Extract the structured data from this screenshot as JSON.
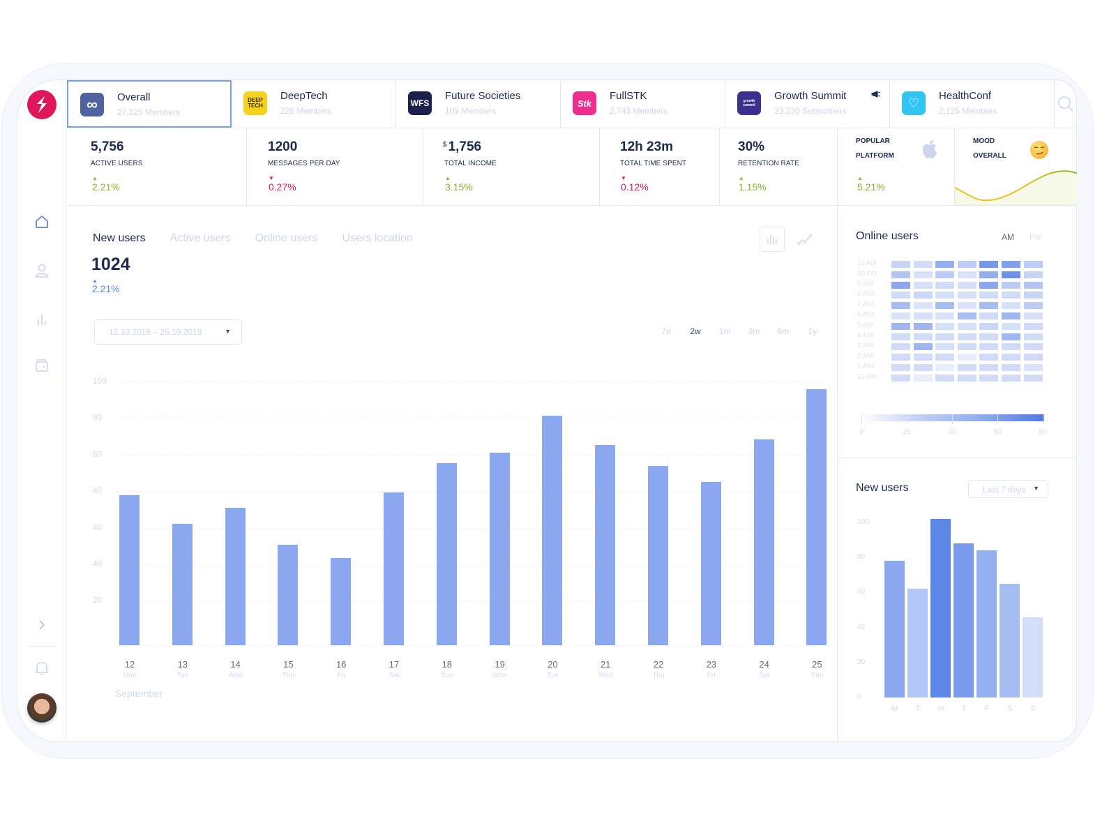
{
  "sidebar": {
    "logo": "lightning-s-logo",
    "nav": [
      {
        "name": "home",
        "icon": "home-icon",
        "active": true
      },
      {
        "name": "users",
        "icon": "user-icon",
        "active": false
      },
      {
        "name": "analytics",
        "icon": "bar-chart-icon",
        "active": false
      },
      {
        "name": "wallet",
        "icon": "wallet-icon",
        "active": false
      }
    ],
    "expand_icon": "chevron-right-icon",
    "notifications_icon": "bell-icon"
  },
  "communities": [
    {
      "name": "Overall",
      "sub": "27,125 Members",
      "logo_text": "∞",
      "logo_bg": "#4f63a0",
      "active": true
    },
    {
      "name": "DeepTech",
      "sub": "226 Members",
      "logo_text": "DEEP TECH",
      "logo_bg": "#f7d21b"
    },
    {
      "name": "Future Societies",
      "sub": "109 Members",
      "logo_text": "WFS",
      "logo_bg": "#1d1f4d"
    },
    {
      "name": "FullSTK",
      "sub": "2,743 Members",
      "logo_text": "Stk",
      "logo_bg": "#ee2e8f"
    },
    {
      "name": "Growth Summit",
      "sub": "23,230 Subscribers",
      "logo_text": "growth summit",
      "logo_bg": "#3b2f8f",
      "extra_icon": "megaphone-icon"
    },
    {
      "name": "HealthConf",
      "sub": "2,125 Members",
      "logo_text": "♡",
      "logo_bg": "#32c5f4"
    }
  ],
  "search_icon": "search-icon",
  "stats": [
    {
      "value": "5,756",
      "label": "ACTIVE USERS",
      "delta": "2.21%",
      "trend": "up"
    },
    {
      "value": "1200",
      "label": "MESSAGES PER DAY",
      "delta": "0.27%",
      "trend": "down"
    },
    {
      "currency": "$",
      "value": "1,756",
      "label": "TOTAL INCOME",
      "delta": "3.15%",
      "trend": "up"
    },
    {
      "value": "12h 23m",
      "label": "TOTAL TIME SPENT",
      "delta": "0.12%",
      "trend": "down"
    },
    {
      "value": "30%",
      "label": "RETENTION RATE",
      "delta": "1.15%",
      "trend": "up"
    },
    {
      "label_line1": "POPULAR",
      "label_line2": "PLATFORM",
      "icon": "apple-icon",
      "delta": "5.21%",
      "trend": "up"
    },
    {
      "label_line1": "MOOD",
      "label_line2": "OVERALL",
      "icon": "smirk-emoji-icon"
    }
  ],
  "main": {
    "tabs": [
      "New users",
      "Active users",
      "Online users",
      "Users location"
    ],
    "active_tab": 0,
    "total": "1024",
    "delta": "2.21%",
    "date_range": "12.10.2019 – 25.10.2019",
    "ranges": [
      "7d",
      "2w",
      "1m",
      "3m",
      "6m",
      "1y"
    ],
    "active_range": 1,
    "month": "September"
  },
  "online_users": {
    "title": "Online users",
    "am": "AM",
    "pm": "PM",
    "rows": [
      "11 AM",
      "10 AM",
      "9 AM",
      "8 AM",
      "7 AM",
      "6 AM",
      "5 AM",
      "4 AM",
      "3 AM",
      "2 AM",
      "1 AM",
      "12 AM"
    ],
    "matrix": [
      [
        20,
        15,
        45,
        25,
        60,
        55,
        25
      ],
      [
        30,
        12,
        25,
        10,
        45,
        65,
        20
      ],
      [
        50,
        12,
        15,
        12,
        50,
        25,
        30
      ],
      [
        15,
        18,
        12,
        12,
        15,
        15,
        20
      ],
      [
        35,
        10,
        35,
        10,
        35,
        12,
        25
      ],
      [
        10,
        12,
        10,
        35,
        15,
        40,
        12
      ],
      [
        40,
        40,
        12,
        12,
        18,
        12,
        15
      ],
      [
        15,
        15,
        15,
        15,
        15,
        40,
        15
      ],
      [
        15,
        40,
        12,
        15,
        15,
        15,
        15
      ],
      [
        15,
        15,
        15,
        3,
        15,
        15,
        15
      ],
      [
        15,
        15,
        3,
        15,
        15,
        15,
        10
      ],
      [
        15,
        3,
        15,
        15,
        15,
        15,
        15
      ]
    ],
    "legend_ticks": [
      "0",
      "20",
      "40",
      "60",
      "80"
    ]
  },
  "new_users_small": {
    "title": "New users",
    "select": "Last 7 days",
    "y_ticks": [
      "100",
      "80",
      "60",
      "40",
      "20",
      "0"
    ]
  },
  "chart_data": [
    {
      "type": "bar",
      "title": "New users",
      "categories": [
        "12 Mon",
        "13 Tue",
        "14 Wed",
        "15 Thu",
        "16 Fri",
        "17 Sat",
        "18 Sun",
        "19 Mon",
        "20 Tue",
        "21 Wed",
        "22 Thu",
        "23 Fri",
        "24 Sat",
        "25 Sun"
      ],
      "values": [
        57,
        46,
        52,
        38,
        33,
        58,
        69,
        73,
        87,
        76,
        68,
        62,
        78,
        97
      ],
      "y_tick_labels": [
        "100",
        "80",
        "60",
        "40",
        "40",
        "40",
        "20"
      ],
      "xlabel": "September",
      "ylabel": "",
      "ylim": [
        0,
        100
      ],
      "grid": true,
      "color": "#8aa7ef"
    },
    {
      "type": "bar",
      "title": "New users (Last 7 days)",
      "categories": [
        "M",
        "T",
        "W",
        "T",
        "F",
        "S",
        "S"
      ],
      "values": [
        78,
        62,
        102,
        88,
        84,
        65,
        46
      ],
      "y_tick_labels": [
        "100",
        "80",
        "60",
        "40",
        "20",
        "0"
      ],
      "ylim": [
        0,
        100
      ],
      "colors": [
        "#8aa7ef",
        "#b3c7f7",
        "#5b86e5",
        "#7b9cee",
        "#94b0f1",
        "#a6bdf3",
        "#d3def9"
      ]
    },
    {
      "type": "heatmap",
      "title": "Online users",
      "rows": [
        "11 AM",
        "10 AM",
        "9 AM",
        "8 AM",
        "7 AM",
        "6 AM",
        "5 AM",
        "4 AM",
        "3 AM",
        "2 AM",
        "1 AM",
        "12 AM"
      ],
      "scale": [
        0,
        80
      ]
    }
  ]
}
